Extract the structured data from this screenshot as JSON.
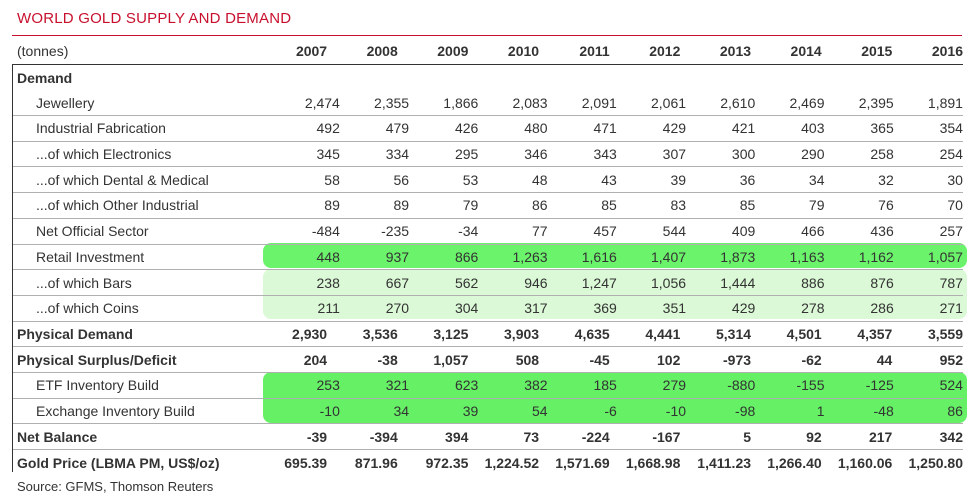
{
  "title": "WORLD GOLD SUPPLY AND DEMAND",
  "unit_label": "(tonnes)",
  "years": [
    "2007",
    "2008",
    "2009",
    "2010",
    "2011",
    "2012",
    "2013",
    "2014",
    "2015",
    "2016"
  ],
  "rows": [
    {
      "label": "Demand",
      "values": [
        "",
        "",
        "",
        "",
        "",
        "",
        "",
        "",
        "",
        ""
      ]
    },
    {
      "label": "Jewellery",
      "values": [
        "2,474",
        "2,355",
        "1,866",
        "2,083",
        "2,091",
        "2,061",
        "2,610",
        "2,469",
        "2,395",
        "1,891"
      ]
    },
    {
      "label": "Industrial Fabrication",
      "values": [
        "492",
        "479",
        "426",
        "480",
        "471",
        "429",
        "421",
        "403",
        "365",
        "354"
      ]
    },
    {
      "label": "...of which Electronics",
      "values": [
        "345",
        "334",
        "295",
        "346",
        "343",
        "307",
        "300",
        "290",
        "258",
        "254"
      ]
    },
    {
      "label": "...of which Dental & Medical",
      "values": [
        "58",
        "56",
        "53",
        "48",
        "43",
        "39",
        "36",
        "34",
        "32",
        "30"
      ]
    },
    {
      "label": "...of which Other Industrial",
      "values": [
        "89",
        "89",
        "79",
        "86",
        "85",
        "83",
        "85",
        "79",
        "76",
        "70"
      ]
    },
    {
      "label": "Net Official Sector",
      "values": [
        "-484",
        "-235",
        "-34",
        "77",
        "457",
        "544",
        "409",
        "466",
        "436",
        "257"
      ]
    },
    {
      "label": "Retail Investment",
      "values": [
        "448",
        "937",
        "866",
        "1,263",
        "1,616",
        "1,407",
        "1,873",
        "1,163",
        "1,162",
        "1,057"
      ]
    },
    {
      "label": "...of which Bars",
      "values": [
        "238",
        "667",
        "562",
        "946",
        "1,247",
        "1,056",
        "1,444",
        "886",
        "876",
        "787"
      ]
    },
    {
      "label": "...of which Coins",
      "values": [
        "211",
        "270",
        "304",
        "317",
        "369",
        "351",
        "429",
        "278",
        "286",
        "271"
      ]
    },
    {
      "label": "Physical Demand",
      "values": [
        "2,930",
        "3,536",
        "3,125",
        "3,903",
        "4,635",
        "4,441",
        "5,314",
        "4,501",
        "4,357",
        "3,559"
      ]
    },
    {
      "label": "Physical Surplus/Deficit",
      "values": [
        "204",
        "-38",
        "1,057",
        "508",
        "-45",
        "102",
        "-973",
        "-62",
        "44",
        "952"
      ]
    },
    {
      "label": "ETF Inventory Build",
      "values": [
        "253",
        "321",
        "623",
        "382",
        "185",
        "279",
        "-880",
        "-155",
        "-125",
        "524"
      ]
    },
    {
      "label": "Exchange Inventory Build",
      "values": [
        "-10",
        "34",
        "39",
        "54",
        "-6",
        "-10",
        "-98",
        "1",
        "-48",
        "86"
      ]
    },
    {
      "label": "Net Balance",
      "values": [
        "-39",
        "-394",
        "394",
        "73",
        "-224",
        "-167",
        "5",
        "92",
        "217",
        "342"
      ]
    },
    {
      "label": "Gold Price (LBMA PM, US$/oz)",
      "values": [
        "695.39",
        "871.96",
        "972.35",
        "1,224.52",
        "1,571.69",
        "1,668.98",
        "1,411.23",
        "1,266.40",
        "1,160.06",
        "1,250.80"
      ]
    }
  ],
  "source": "Source: GFMS, Thomson Reuters",
  "colors": {
    "title": "#c8102e",
    "highlight_strong": "#6bf36b",
    "highlight_light": "#dbf9d6"
  }
}
